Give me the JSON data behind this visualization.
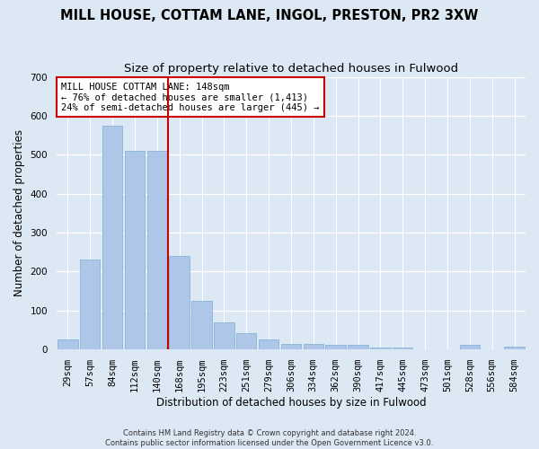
{
  "title": "MILL HOUSE, COTTAM LANE, INGOL, PRESTON, PR2 3XW",
  "subtitle": "Size of property relative to detached houses in Fulwood",
  "xlabel": "Distribution of detached houses by size in Fulwood",
  "ylabel": "Number of detached properties",
  "footnote": "Contains HM Land Registry data © Crown copyright and database right 2024.\nContains public sector information licensed under the Open Government Licence v3.0.",
  "categories": [
    "29sqm",
    "57sqm",
    "84sqm",
    "112sqm",
    "140sqm",
    "168sqm",
    "195sqm",
    "223sqm",
    "251sqm",
    "279sqm",
    "306sqm",
    "334sqm",
    "362sqm",
    "390sqm",
    "417sqm",
    "445sqm",
    "473sqm",
    "501sqm",
    "528sqm",
    "556sqm",
    "584sqm"
  ],
  "values": [
    27,
    230,
    575,
    510,
    510,
    240,
    125,
    70,
    42,
    27,
    15,
    15,
    11,
    11,
    6,
    6,
    0,
    0,
    11,
    0,
    7
  ],
  "bar_color": "#aec6e8",
  "bar_edge_color": "#7aadd4",
  "reference_line_x": 4.5,
  "reference_line_color": "#cc0000",
  "annotation_text": "MILL HOUSE COTTAM LANE: 148sqm\n← 76% of detached houses are smaller (1,413)\n24% of semi-detached houses are larger (445) →",
  "annotation_box_color": "#ffffff",
  "annotation_box_edge": "#cc0000",
  "ylim": [
    0,
    700
  ],
  "yticks": [
    0,
    100,
    200,
    300,
    400,
    500,
    600,
    700
  ],
  "background_color": "#dde8f5",
  "grid_color": "#ffffff",
  "title_fontsize": 10.5,
  "subtitle_fontsize": 9.5,
  "axis_label_fontsize": 8.5,
  "tick_fontsize": 7.5,
  "footnote_fontsize": 6.0
}
